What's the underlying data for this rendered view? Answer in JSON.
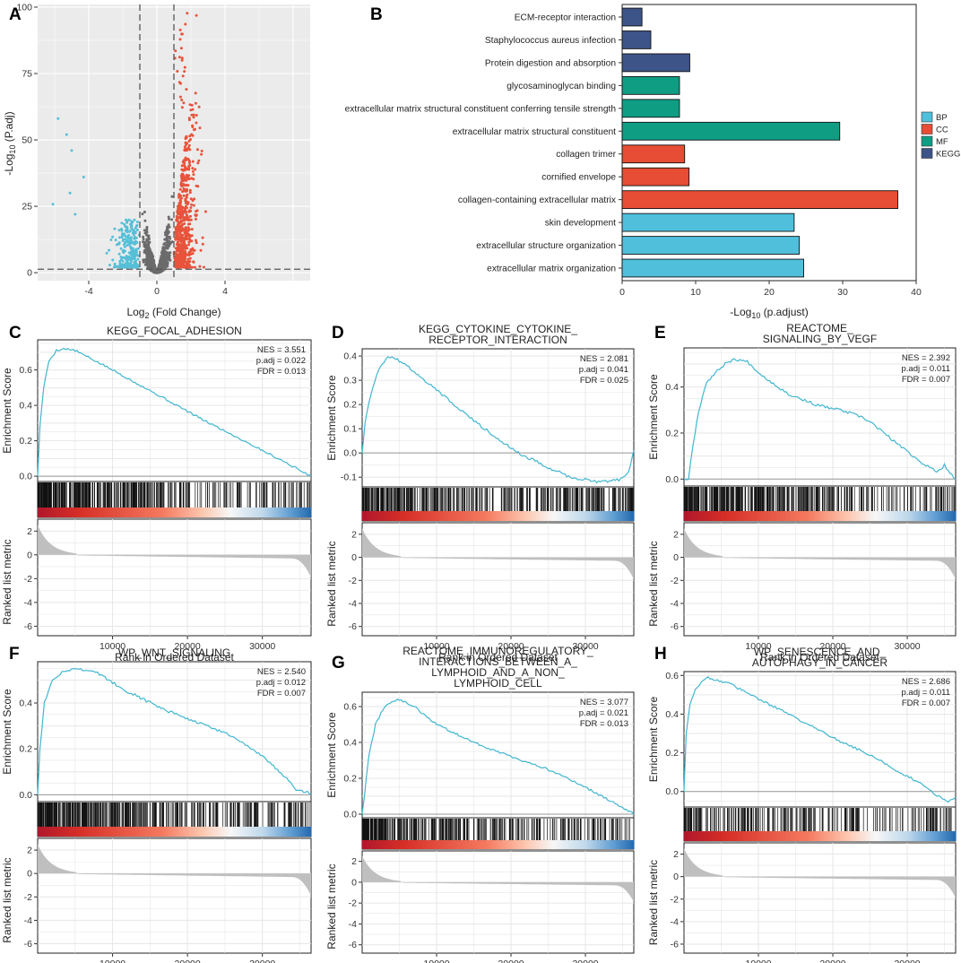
{
  "panels": {
    "A": {
      "label": "A",
      "chart_data": {
        "type": "scatter",
        "title": "",
        "xlabel_main": "Log",
        "xlabel_sub": "2",
        "xlabel_rest": " (Fold Change)",
        "ylabel_main": "-Log",
        "ylabel_sub": "10",
        "ylabel_rest": " (P.adj)",
        "xlim": [
          -7,
          9
        ],
        "ylim": [
          -3,
          101
        ],
        "xticks": [
          -4,
          0,
          4
        ],
        "yticks": [
          0,
          25,
          50,
          75,
          100
        ],
        "fc_threshold": 1,
        "p_threshold": 1.3,
        "colors": {
          "down": "#56bfd8",
          "ns": "#6b6b6b",
          "up": "#e8533b"
        },
        "seed": 7
      }
    },
    "B": {
      "label": "B",
      "chart_data": {
        "type": "bar",
        "orientation": "horizontal",
        "xlabel_main": "-Log",
        "xlabel_sub": "10",
        "xlabel_rest": " (p.adjust)",
        "xlim": [
          0,
          40
        ],
        "xticks": [
          0,
          10,
          20,
          30,
          40
        ],
        "categories": [
          "ECM-receptor interaction",
          "Staphylococcus aureus infection",
          "Protein digestion and absorption",
          "glycosaminoglycan binding",
          "extracellular matrix structural constituent conferring tensile strength",
          "extracellular matrix structural constituent",
          "collagen trimer",
          "cornified envelope",
          "collagen-containing extracellular matrix",
          "skin development",
          "extracellular structure organization",
          "extracellular matrix organization"
        ],
        "values": [
          2.7,
          3.9,
          9.2,
          7.8,
          7.8,
          29.6,
          8.5,
          9.1,
          37.5,
          23.4,
          24.1,
          24.7
        ],
        "groups": [
          "KEGG",
          "KEGG",
          "KEGG",
          "MF",
          "MF",
          "MF",
          "CC",
          "CC",
          "CC",
          "BP",
          "BP",
          "BP"
        ],
        "legend": [
          {
            "name": "BP",
            "color": "#4fbfdc"
          },
          {
            "name": "CC",
            "color": "#e64d34"
          },
          {
            "name": "MF",
            "color": "#0f9e84"
          },
          {
            "name": "KEGG",
            "color": "#3d5488"
          }
        ]
      }
    },
    "gsea": [
      {
        "label": "C",
        "title": [
          "KEGG_FOCAL_ADHESION"
        ],
        "nes": "NES = 3.551",
        "padj": "p.adj = 0.022",
        "fdr": "FDR = 0.013",
        "xlim": [
          0,
          36500
        ],
        "ylim": [
          -0.03,
          0.77
        ],
        "yticks": [
          0.0,
          0.2,
          0.4,
          0.6
        ],
        "peak_x": 3500,
        "peak_es": 0.72,
        "end_es": 0.0,
        "curve": [
          [
            0,
            0
          ],
          [
            300,
            0.28
          ],
          [
            800,
            0.5
          ],
          [
            1500,
            0.65
          ],
          [
            2500,
            0.71
          ],
          [
            3500,
            0.72
          ],
          [
            5000,
            0.71
          ],
          [
            10000,
            0.6
          ],
          [
            16000,
            0.46
          ],
          [
            22000,
            0.32
          ],
          [
            28000,
            0.19
          ],
          [
            33000,
            0.08
          ],
          [
            36000,
            0.01
          ],
          [
            36500,
            0
          ]
        ],
        "hits_pattern": "dense"
      },
      {
        "label": "D",
        "title": [
          "KEGG_CYTOKINE_CYTOKINE_",
          "RECEPTOR_INTERACTION"
        ],
        "nes": "NES = 2.081",
        "padj": "p.adj = 0.041",
        "fdr": "FDR = 0.025",
        "xlim": [
          0,
          36500
        ],
        "ylim": [
          -0.14,
          0.43
        ],
        "yticks": [
          -0.1,
          0.0,
          0.1,
          0.2,
          0.3,
          0.4
        ],
        "peak_x": 4000,
        "peak_es": 0.4,
        "end_es": 0.0,
        "curve": [
          [
            0,
            0
          ],
          [
            400,
            0.13
          ],
          [
            1200,
            0.25
          ],
          [
            2200,
            0.34
          ],
          [
            3200,
            0.39
          ],
          [
            4000,
            0.4
          ],
          [
            6000,
            0.36
          ],
          [
            10000,
            0.26
          ],
          [
            16000,
            0.11
          ],
          [
            21000,
            0.0
          ],
          [
            25000,
            -0.06
          ],
          [
            28000,
            -0.1
          ],
          [
            32000,
            -0.12
          ],
          [
            34500,
            -0.11
          ],
          [
            35800,
            -0.08
          ],
          [
            36500,
            0.01
          ]
        ],
        "hits_pattern": "dense_end"
      },
      {
        "label": "E",
        "title": [
          "REACTOME_",
          "SIGNALING_BY_VEGF"
        ],
        "nes": "NES = 2.392",
        "padj": "p.adj = 0.011",
        "fdr": "FDR = 0.007",
        "xlim": [
          0,
          36500
        ],
        "ylim": [
          -0.03,
          0.57
        ],
        "yticks": [
          0.0,
          0.2,
          0.4
        ],
        "peak_x": 7000,
        "peak_es": 0.52,
        "end_es": 0.02,
        "curve": [
          [
            0,
            0
          ],
          [
            600,
            0.0
          ],
          [
            1200,
            0.15
          ],
          [
            2000,
            0.3
          ],
          [
            3000,
            0.42
          ],
          [
            4500,
            0.47
          ],
          [
            5800,
            0.51
          ],
          [
            7000,
            0.52
          ],
          [
            8500,
            0.51
          ],
          [
            10500,
            0.45
          ],
          [
            14000,
            0.37
          ],
          [
            18000,
            0.32
          ],
          [
            21000,
            0.3
          ],
          [
            23000,
            0.28
          ],
          [
            25000,
            0.25
          ],
          [
            28000,
            0.17
          ],
          [
            32000,
            0.07
          ],
          [
            34000,
            0.03
          ],
          [
            35000,
            0.06
          ],
          [
            36000,
            0.02
          ],
          [
            36500,
            0.0
          ]
        ],
        "hits_pattern": "dense"
      },
      {
        "label": "F",
        "title": [
          "WP_WNT_SIGNALING"
        ],
        "nes": "NES = 2.540",
        "padj": "p.adj = 0.012",
        "fdr": "FDR = 0.007",
        "xlim": [
          0,
          36500
        ],
        "ylim": [
          -0.03,
          0.58
        ],
        "yticks": [
          0.0,
          0.2,
          0.4
        ],
        "peak_x": 5500,
        "peak_es": 0.55,
        "end_es": 0.0,
        "curve": [
          [
            0,
            0
          ],
          [
            300,
            0.2
          ],
          [
            900,
            0.4
          ],
          [
            2000,
            0.5
          ],
          [
            3500,
            0.54
          ],
          [
            5500,
            0.55
          ],
          [
            8000,
            0.53
          ],
          [
            12000,
            0.45
          ],
          [
            17000,
            0.37
          ],
          [
            21000,
            0.32
          ],
          [
            25000,
            0.27
          ],
          [
            30000,
            0.17
          ],
          [
            33000,
            0.08
          ],
          [
            34500,
            0.02
          ],
          [
            36000,
            0.01
          ],
          [
            36500,
            0
          ]
        ],
        "hits_pattern": "dense"
      },
      {
        "label": "G",
        "title": [
          "REACTOME_IMMUNOREGULATORY_",
          "INTERACTIONS_BETWEEN_A_",
          "LYMPHOID_AND_A_NON_",
          "LYMPHOID_CELL"
        ],
        "nes": "NES = 3.077",
        "padj": "p.adj = 0.021",
        "fdr": "FDR = 0.013",
        "xlim": [
          0,
          36500
        ],
        "ylim": [
          -0.02,
          0.68
        ],
        "yticks": [
          0.0,
          0.2,
          0.4,
          0.6
        ],
        "peak_x": 5000,
        "peak_es": 0.64,
        "end_es": 0.0,
        "curve": [
          [
            0,
            0
          ],
          [
            300,
            0.1
          ],
          [
            900,
            0.33
          ],
          [
            1800,
            0.5
          ],
          [
            3000,
            0.6
          ],
          [
            4200,
            0.63
          ],
          [
            5000,
            0.64
          ],
          [
            7000,
            0.6
          ],
          [
            10000,
            0.5
          ],
          [
            15000,
            0.4
          ],
          [
            20000,
            0.32
          ],
          [
            25000,
            0.25
          ],
          [
            30000,
            0.15
          ],
          [
            34000,
            0.06
          ],
          [
            36500,
            0
          ]
        ],
        "hits_pattern": "front"
      },
      {
        "label": "H",
        "title": [
          "WP_SENESCENCE_AND_",
          "AUTOPHAGY_IN_CANCER"
        ],
        "nes": "NES = 2.686",
        "padj": "p.adj = 0.011",
        "fdr": "FDR = 0.007",
        "xlim": [
          0,
          36500
        ],
        "ylim": [
          -0.08,
          0.62
        ],
        "yticks": [
          0.0,
          0.2,
          0.4,
          0.6
        ],
        "peak_x": 3000,
        "peak_es": 0.59,
        "end_es": -0.05,
        "curve": [
          [
            0,
            0
          ],
          [
            300,
            0.3
          ],
          [
            800,
            0.45
          ],
          [
            1500,
            0.53
          ],
          [
            2300,
            0.56
          ],
          [
            3000,
            0.59
          ],
          [
            4000,
            0.58
          ],
          [
            6000,
            0.56
          ],
          [
            9000,
            0.5
          ],
          [
            13000,
            0.42
          ],
          [
            17000,
            0.34
          ],
          [
            21000,
            0.26
          ],
          [
            25000,
            0.19
          ],
          [
            29000,
            0.1
          ],
          [
            32000,
            0.04
          ],
          [
            34000,
            -0.02
          ],
          [
            35500,
            -0.05
          ],
          [
            36500,
            -0.03
          ]
        ],
        "hits_pattern": "sparse"
      }
    ],
    "gsea_common": {
      "ylabel_es": "Enrichment Score",
      "ylabel_rank": "Ranked list metric",
      "xlabel": "Rank in Ordered Dataset",
      "xticks": [
        10000,
        20000,
        30000
      ],
      "rank_yticks": [
        2,
        0,
        -2,
        -4,
        -6
      ],
      "curve_color": "#41b6cf",
      "fill_color": "#bfbfbf"
    }
  }
}
